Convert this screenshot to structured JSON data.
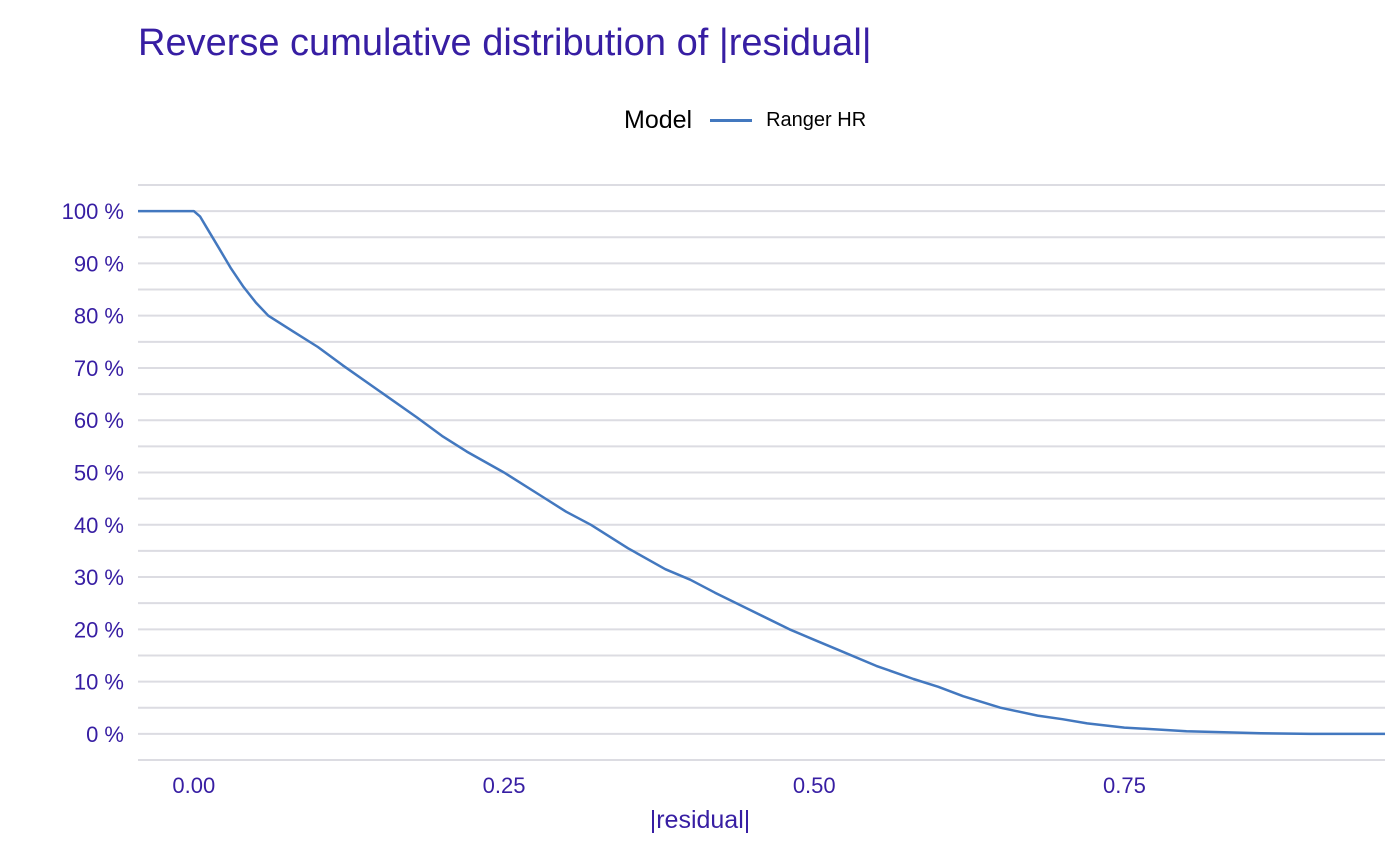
{
  "chart_data": {
    "type": "line",
    "title": "Reverse cumulative distribution of |residual|",
    "xlabel": "|residual|",
    "ylabel": "",
    "xlim": [
      -0.045,
      0.96
    ],
    "ylim": [
      -0.05,
      1.05
    ],
    "x_ticks": [
      0.0,
      0.25,
      0.5,
      0.75
    ],
    "x_tick_labels": [
      "0.00",
      "0.25",
      "0.50",
      "0.75"
    ],
    "y_ticks": [
      0.0,
      0.1,
      0.2,
      0.3,
      0.4,
      0.5,
      0.6,
      0.7,
      0.8,
      0.9,
      1.0
    ],
    "y_tick_labels": [
      "0 %",
      "10 %",
      "20 %",
      "30 %",
      "40 %",
      "50 %",
      "60 %",
      "70 %",
      "80 %",
      "90 %",
      "100 %"
    ],
    "grid": true,
    "legend": {
      "title": "Model",
      "position": "top"
    },
    "series": [
      {
        "name": "Ranger HR",
        "color": "#4378bf",
        "x": [
          -0.045,
          0.0,
          0.005,
          0.01,
          0.02,
          0.03,
          0.04,
          0.05,
          0.06,
          0.08,
          0.1,
          0.12,
          0.15,
          0.18,
          0.2,
          0.22,
          0.25,
          0.28,
          0.3,
          0.32,
          0.35,
          0.38,
          0.4,
          0.42,
          0.45,
          0.48,
          0.5,
          0.52,
          0.55,
          0.58,
          0.6,
          0.62,
          0.65,
          0.68,
          0.7,
          0.72,
          0.75,
          0.78,
          0.8,
          0.83,
          0.86,
          0.9,
          0.96
        ],
        "y": [
          1.0,
          1.0,
          0.99,
          0.97,
          0.93,
          0.89,
          0.855,
          0.825,
          0.8,
          0.77,
          0.74,
          0.705,
          0.655,
          0.605,
          0.57,
          0.54,
          0.5,
          0.455,
          0.425,
          0.4,
          0.355,
          0.315,
          0.295,
          0.27,
          0.235,
          0.2,
          0.18,
          0.16,
          0.13,
          0.105,
          0.09,
          0.072,
          0.05,
          0.035,
          0.028,
          0.02,
          0.012,
          0.008,
          0.005,
          0.003,
          0.001,
          0.0,
          0.0
        ]
      }
    ]
  }
}
